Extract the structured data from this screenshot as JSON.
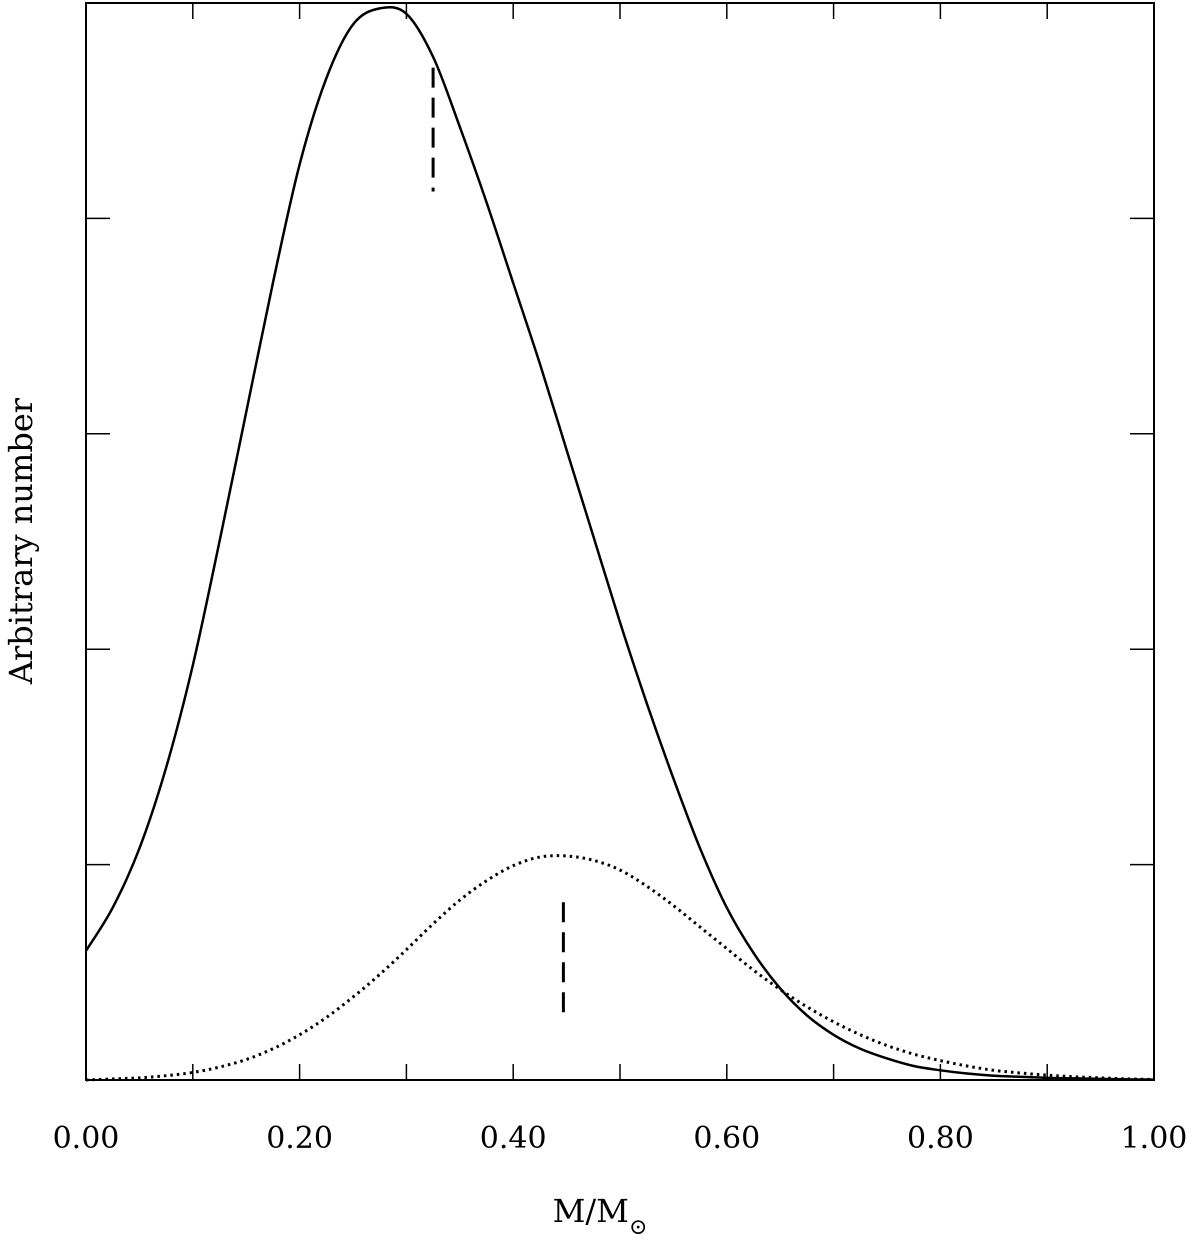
{
  "chart_data": {
    "type": "line",
    "title": "",
    "xlabel": "M/M",
    "xlabel_subscript": "⊙",
    "ylabel": "Arbitrary number",
    "xlim": [
      0.0,
      1.0
    ],
    "ylim": [
      0,
      1
    ],
    "grid": false,
    "legend": "none",
    "x_ticks": [
      0.0,
      0.1,
      0.2,
      0.3,
      0.4,
      0.5,
      0.6,
      0.7,
      0.8,
      0.9,
      1.0
    ],
    "x_tick_labels": [
      {
        "value": 0.0,
        "text": "0.00"
      },
      {
        "value": 0.2,
        "text": "0.20"
      },
      {
        "value": 0.4,
        "text": "0.40"
      },
      {
        "value": 0.6,
        "text": "0.60"
      },
      {
        "value": 0.8,
        "text": "0.80"
      },
      {
        "value": 1.0,
        "text": "1.00"
      }
    ],
    "y_ticks": [
      0.2,
      0.4,
      0.6,
      0.8
    ],
    "series": [
      {
        "style": "solid",
        "x": [
          0.0,
          0.025,
          0.05,
          0.075,
          0.1,
          0.125,
          0.15,
          0.175,
          0.2,
          0.225,
          0.25,
          0.275,
          0.3,
          0.325,
          0.35,
          0.375,
          0.4,
          0.425,
          0.45,
          0.475,
          0.5,
          0.525,
          0.55,
          0.575,
          0.6,
          0.625,
          0.65,
          0.675,
          0.7,
          0.725,
          0.75,
          0.775,
          0.8,
          0.825,
          0.85,
          0.875,
          0.9,
          0.925,
          0.95,
          0.975,
          1.0
        ],
        "y": [
          0.12,
          0.16,
          0.215,
          0.29,
          0.385,
          0.5,
          0.62,
          0.74,
          0.85,
          0.93,
          0.98,
          0.995,
          0.99,
          0.95,
          0.885,
          0.815,
          0.74,
          0.665,
          0.585,
          0.505,
          0.425,
          0.35,
          0.28,
          0.215,
          0.16,
          0.118,
          0.085,
          0.06,
          0.042,
          0.029,
          0.02,
          0.013,
          0.009,
          0.006,
          0.004,
          0.003,
          0.002,
          0.0015,
          0.001,
          0.0006,
          0.0003
        ]
      },
      {
        "style": "dotted",
        "x": [
          0.0,
          0.025,
          0.05,
          0.075,
          0.1,
          0.125,
          0.15,
          0.175,
          0.2,
          0.225,
          0.25,
          0.275,
          0.3,
          0.325,
          0.35,
          0.375,
          0.4,
          0.425,
          0.45,
          0.475,
          0.5,
          0.525,
          0.55,
          0.575,
          0.6,
          0.625,
          0.65,
          0.675,
          0.7,
          0.725,
          0.75,
          0.775,
          0.8,
          0.825,
          0.85,
          0.875,
          0.9,
          0.925,
          0.95,
          0.975,
          1.0
        ],
        "y": [
          0.0,
          0.001,
          0.002,
          0.004,
          0.007,
          0.012,
          0.019,
          0.029,
          0.042,
          0.058,
          0.077,
          0.098,
          0.121,
          0.145,
          0.167,
          0.185,
          0.199,
          0.207,
          0.208,
          0.204,
          0.195,
          0.18,
          0.162,
          0.142,
          0.122,
          0.102,
          0.084,
          0.068,
          0.054,
          0.042,
          0.032,
          0.024,
          0.018,
          0.013,
          0.009,
          0.0065,
          0.0045,
          0.003,
          0.002,
          0.001,
          0.0005
        ]
      }
    ],
    "markers": [
      {
        "x": 0.325,
        "y_range": [
          0.825,
          0.94
        ],
        "style": "dashed"
      },
      {
        "x": 0.447,
        "y_range": [
          0.055,
          0.165
        ],
        "style": "dashed"
      }
    ]
  }
}
